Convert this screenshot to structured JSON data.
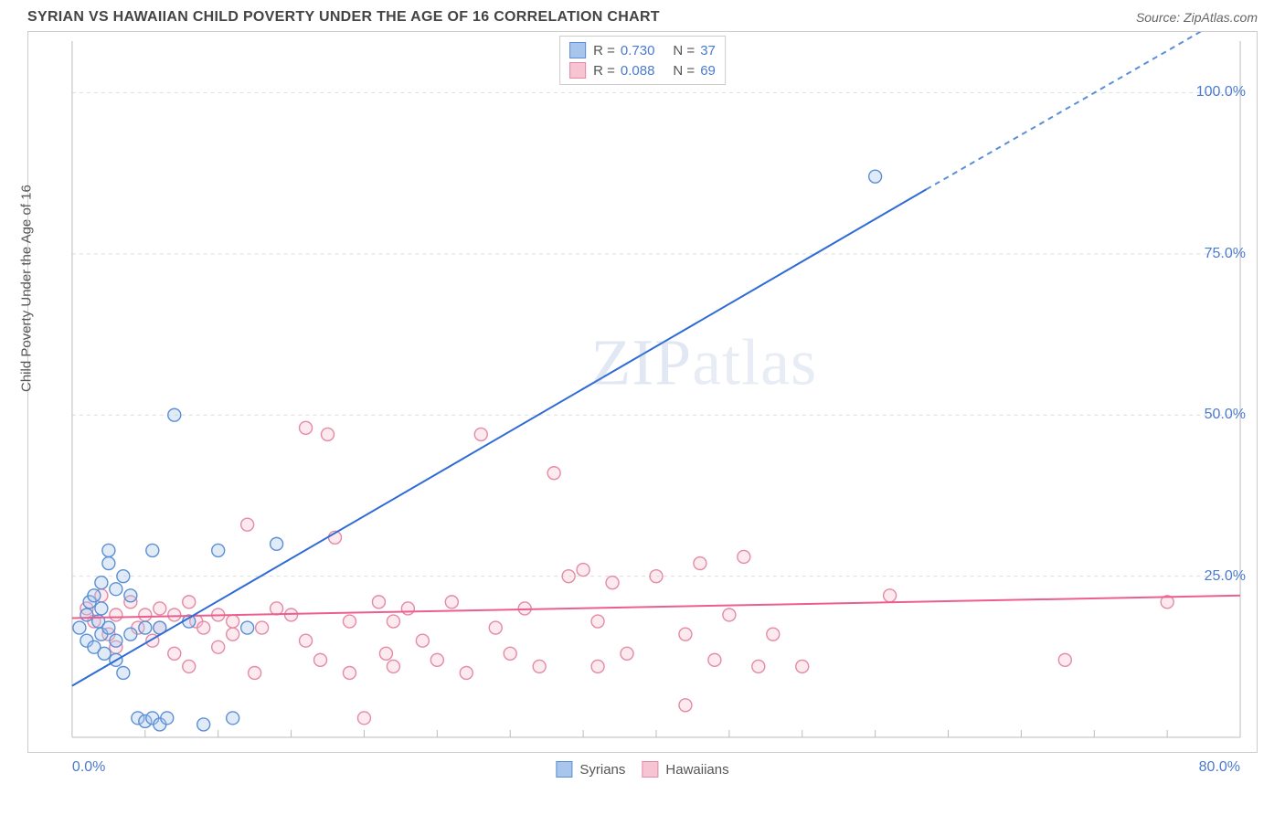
{
  "header": {
    "title": "SYRIAN VS HAWAIIAN CHILD POVERTY UNDER THE AGE OF 16 CORRELATION CHART",
    "source_label": "Source:",
    "source_name": "ZipAtlas.com"
  },
  "watermark": {
    "part1": "ZIP",
    "part2": "atlas"
  },
  "chart": {
    "type": "scatter",
    "ylabel": "Child Poverty Under the Age of 16",
    "xlim": [
      0,
      80
    ],
    "ylim": [
      0,
      108
    ],
    "x_ticks_major": [
      0,
      80
    ],
    "x_tick_labels": {
      "0": "0.0%",
      "80": "80.0%"
    },
    "x_ticks_minor": [
      5,
      10,
      15,
      20,
      25,
      30,
      35,
      40,
      45,
      50,
      55,
      60,
      65,
      70,
      75
    ],
    "y_ticks": [
      25,
      50,
      75,
      100
    ],
    "y_tick_labels": {
      "25": "25.0%",
      "50": "50.0%",
      "75": "75.0%",
      "100": "100.0%"
    },
    "background_color": "#ffffff",
    "grid_color": "#dddddd",
    "grid_dash": "4 4",
    "axis_color": "#bbbbbb",
    "marker_radius": 7,
    "marker_stroke_width": 1.4,
    "marker_fill_opacity": 0.35,
    "label_fontsize": 15,
    "tick_fontsize": 16,
    "tick_label_color": "#4a7bd0",
    "series": [
      {
        "key": "syrians",
        "label": "Syrians",
        "stroke": "#5a8fd6",
        "fill": "#a8c6ec",
        "R": "0.730",
        "N": "37",
        "regression": {
          "x1": 0,
          "y1": 8,
          "x2": 58.5,
          "y2": 85,
          "extend_to_x": 80,
          "extend_to_y": 113,
          "solid_color": "#2e6bd6",
          "dash_color": "#5a8fd6",
          "width": 2
        },
        "points": [
          [
            0.5,
            17
          ],
          [
            1,
            19
          ],
          [
            1,
            15
          ],
          [
            1.2,
            21
          ],
          [
            1.5,
            14
          ],
          [
            1.5,
            22
          ],
          [
            1.8,
            18
          ],
          [
            2,
            16
          ],
          [
            2,
            24
          ],
          [
            2,
            20
          ],
          [
            2.2,
            13
          ],
          [
            2.5,
            27
          ],
          [
            2.5,
            17
          ],
          [
            2.5,
            29
          ],
          [
            3,
            15
          ],
          [
            3,
            23
          ],
          [
            3,
            12
          ],
          [
            3.5,
            25
          ],
          [
            3.5,
            10
          ],
          [
            4,
            22
          ],
          [
            4,
            16
          ],
          [
            4.5,
            3
          ],
          [
            5,
            2.5
          ],
          [
            5,
            17
          ],
          [
            5.5,
            29
          ],
          [
            5.5,
            3
          ],
          [
            6,
            2
          ],
          [
            6.5,
            3
          ],
          [
            6,
            17
          ],
          [
            7,
            50
          ],
          [
            8,
            18
          ],
          [
            9,
            2
          ],
          [
            10,
            29
          ],
          [
            11,
            3
          ],
          [
            12,
            17
          ],
          [
            14,
            30
          ],
          [
            55,
            87
          ]
        ]
      },
      {
        "key": "hawaiians",
        "label": "Hawaiians",
        "stroke": "#e48aa6",
        "fill": "#f6c4d2",
        "R": "0.088",
        "N": "69",
        "regression": {
          "x1": 0,
          "y1": 18.5,
          "x2": 80,
          "y2": 22,
          "solid_color": "#ed5e8e",
          "width": 2
        },
        "points": [
          [
            1,
            20
          ],
          [
            1.5,
            18
          ],
          [
            2,
            22
          ],
          [
            2.5,
            16
          ],
          [
            3,
            19
          ],
          [
            3,
            14
          ],
          [
            4,
            21
          ],
          [
            4.5,
            17
          ],
          [
            5,
            19
          ],
          [
            5.5,
            15
          ],
          [
            6,
            20
          ],
          [
            6,
            17
          ],
          [
            7,
            13
          ],
          [
            7,
            19
          ],
          [
            8,
            21
          ],
          [
            8,
            11
          ],
          [
            8.5,
            18
          ],
          [
            9,
            17
          ],
          [
            10,
            19
          ],
          [
            10,
            14
          ],
          [
            11,
            18
          ],
          [
            11,
            16
          ],
          [
            12,
            33
          ],
          [
            12.5,
            10
          ],
          [
            13,
            17
          ],
          [
            14,
            20
          ],
          [
            15,
            19
          ],
          [
            16,
            48
          ],
          [
            16,
            15
          ],
          [
            17,
            12
          ],
          [
            17.5,
            47
          ],
          [
            18,
            31
          ],
          [
            19,
            18
          ],
          [
            19,
            10
          ],
          [
            20,
            3
          ],
          [
            21,
            21
          ],
          [
            21.5,
            13
          ],
          [
            22,
            18
          ],
          [
            22,
            11
          ],
          [
            23,
            20
          ],
          [
            24,
            15
          ],
          [
            25,
            12
          ],
          [
            26,
            21
          ],
          [
            27,
            10
          ],
          [
            28,
            47
          ],
          [
            29,
            17
          ],
          [
            30,
            13
          ],
          [
            31,
            20
          ],
          [
            32,
            11
          ],
          [
            33,
            41
          ],
          [
            34,
            25
          ],
          [
            35,
            26
          ],
          [
            36,
            18
          ],
          [
            36,
            11
          ],
          [
            37,
            24
          ],
          [
            38,
            13
          ],
          [
            40,
            25
          ],
          [
            42,
            5
          ],
          [
            42,
            16
          ],
          [
            43,
            27
          ],
          [
            44,
            12
          ],
          [
            45,
            19
          ],
          [
            46,
            28
          ],
          [
            47,
            11
          ],
          [
            48,
            16
          ],
          [
            50,
            11
          ],
          [
            56,
            22
          ],
          [
            68,
            12
          ],
          [
            75,
            21
          ]
        ]
      }
    ],
    "correlation_box": {
      "rows": [
        {
          "series": "syrians",
          "r_label": "R =",
          "r_value": "0.730",
          "n_label": "N =",
          "n_value": "37"
        },
        {
          "series": "hawaiians",
          "r_label": "R =",
          "r_value": "0.088",
          "n_label": "N =",
          "n_value": "69"
        }
      ]
    },
    "bottom_legend": [
      {
        "series": "syrians",
        "label": "Syrians"
      },
      {
        "series": "hawaiians",
        "label": "Hawaiians"
      }
    ]
  }
}
